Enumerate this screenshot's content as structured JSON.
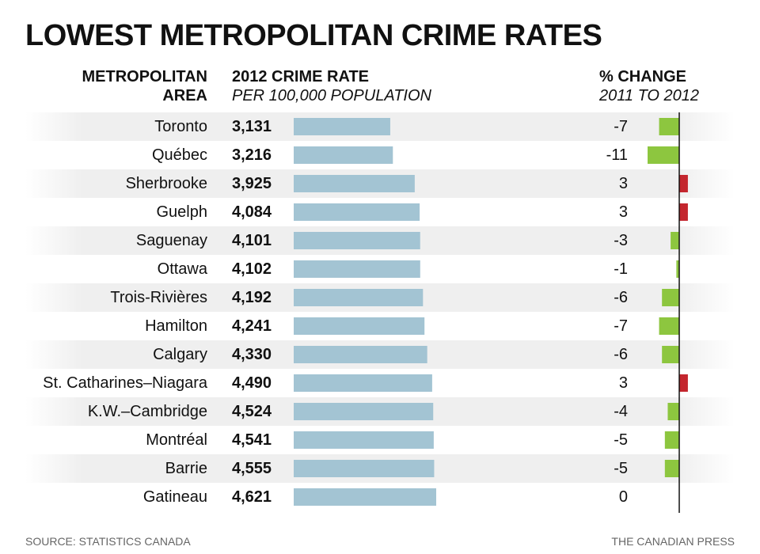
{
  "title": "LOWEST METROPOLITAN CRIME RATES",
  "headers": {
    "area_line1": "METROPOLITAN",
    "area_line2": "AREA",
    "rate_line1": "2012 CRIME RATE",
    "rate_line2": "PER 100,000 POPULATION",
    "change_line1": "% CHANGE",
    "change_line2": "2011 TO 2012"
  },
  "footer": {
    "source": "SOURCE: STATISTICS CANADA",
    "credit": "THE CANADIAN PRESS"
  },
  "colors": {
    "rate_bar": "#a3c4d3",
    "decrease": "#8dc63f",
    "increase": "#c4262e",
    "axis": "#111111"
  },
  "chart_data": {
    "type": "bar",
    "categories": [
      "Toronto",
      "Québec",
      "Sherbrooke",
      "Guelph",
      "Saguenay",
      "Ottawa",
      "Trois-Rivières",
      "Hamilton",
      "Calgary",
      "St. Catharines–Niagara",
      "K.W.–Cambridge",
      "Montréal",
      "Barrie",
      "Gatineau"
    ],
    "series": [
      {
        "values": [
          3131,
          3216,
          3925,
          4084,
          4101,
          4102,
          4192,
          4241,
          4330,
          4490,
          4524,
          4541,
          4555,
          4621
        ]
      },
      {
        "values": [
          -7,
          -11,
          3,
          3,
          -3,
          -1,
          -6,
          -7,
          -6,
          3,
          -4,
          -5,
          -5,
          0
        ]
      }
    ],
    "rate_labels": [
      "3,131",
      "3,216",
      "3,925",
      "4,084",
      "4,101",
      "4,102",
      "4,192",
      "4,241",
      "4,330",
      "4,490",
      "4,524",
      "4,541",
      "4,555",
      "4,621"
    ],
    "change_labels": [
      "-7",
      "-11",
      "3",
      "3",
      "-3",
      "-1",
      "-6",
      "-7",
      "-6",
      "3",
      "-4",
      "-5",
      "-5",
      "0"
    ]
  }
}
